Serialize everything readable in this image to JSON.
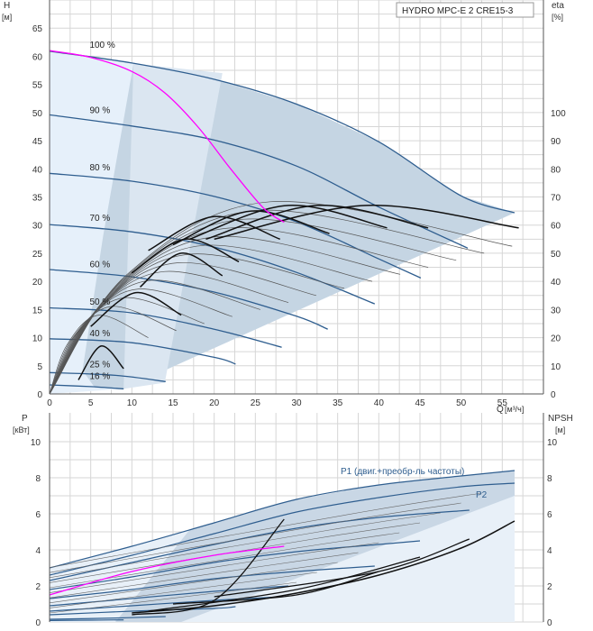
{
  "chart_data": [
    {
      "type": "line",
      "title": "HYDRO MPC-E 2 CRE15-3",
      "xlabel": "Q",
      "xunit": "[м³/ч]",
      "ylabel": "H",
      "yunit": "[м]",
      "y2label": "eta",
      "y2unit": "[%]",
      "xlim": [
        0,
        60
      ],
      "ylim": [
        0,
        70
      ],
      "y2lim": [
        0,
        140
      ],
      "xticks": [
        0,
        5,
        10,
        15,
        20,
        25,
        30,
        35,
        40,
        45,
        50,
        55
      ],
      "yticks": [
        0,
        5,
        10,
        15,
        20,
        25,
        30,
        35,
        40,
        45,
        50,
        55,
        60,
        65
      ],
      "y2ticks": [
        0,
        10,
        20,
        30,
        40,
        50,
        60,
        70,
        80,
        90,
        100
      ],
      "speed_labels": [
        {
          "text": "100 %",
          "q": 1.8,
          "h": 61.2
        },
        {
          "text": "90 %",
          "q": 1.8,
          "h": 49.6
        },
        {
          "text": "80 %",
          "q": 1.8,
          "h": 39.4
        },
        {
          "text": "70 %",
          "q": 1.8,
          "h": 30.4
        },
        {
          "text": "60 %",
          "q": 1.8,
          "h": 22.2
        },
        {
          "text": "50 %",
          "q": 1.8,
          "h": 15.5
        },
        {
          "text": "40 %",
          "q": 1.8,
          "h": 9.9
        },
        {
          "text": "25 %",
          "q": 1.8,
          "h": 4.4
        },
        {
          "text": "16 %",
          "q": 1.8,
          "h": 2.3
        }
      ],
      "series": [
        {
          "name": "100 %",
          "x": [
            0,
            10,
            20,
            30,
            40,
            50,
            56.5
          ],
          "y": [
            60.9,
            58.8,
            55.9,
            51.5,
            44.8,
            35.2,
            32.2
          ]
        },
        {
          "name": "90 %",
          "x": [
            0,
            10,
            20,
            30,
            40,
            50.8
          ],
          "y": [
            49.6,
            47.6,
            45.1,
            40.5,
            33.2,
            25.9
          ]
        },
        {
          "name": "80 %",
          "x": [
            0,
            10,
            20,
            30,
            40,
            45.1
          ],
          "y": [
            39.2,
            37.8,
            35.1,
            30.6,
            24.0,
            20.6
          ]
        },
        {
          "name": "70 %",
          "x": [
            0,
            10,
            20,
            30,
            39.5
          ],
          "y": [
            30.1,
            28.8,
            26.1,
            21.6,
            16.0
          ]
        },
        {
          "name": "60 %",
          "x": [
            0,
            10,
            20,
            30,
            33.8
          ],
          "y": [
            22.1,
            20.8,
            18.1,
            13.8,
            11.5
          ]
        },
        {
          "name": "50 %",
          "x": [
            0,
            10,
            20,
            28.2
          ],
          "y": [
            15.3,
            14.4,
            11.5,
            8.3
          ]
        },
        {
          "name": "40 %",
          "x": [
            0,
            10,
            20,
            22.6
          ],
          "y": [
            9.8,
            9.1,
            6.5,
            5.3
          ]
        },
        {
          "name": "25 %",
          "x": [
            0,
            8,
            14.1
          ],
          "y": [
            3.8,
            3.3,
            2.2
          ]
        },
        {
          "name": "16 %",
          "x": [
            0,
            5,
            9.0
          ],
          "y": [
            1.6,
            1.3,
            0.9
          ]
        }
      ]
    },
    {
      "type": "line",
      "xlabel": "Q",
      "xunit": "[м³/ч]",
      "ylabel": "P",
      "yunit": "[кВт]",
      "y2label": "NPSH",
      "y2unit": "[м]",
      "xlim": [
        0,
        60
      ],
      "ylim": [
        0,
        11.6
      ],
      "yticks": [
        0,
        2,
        4,
        6,
        8,
        10
      ],
      "y2ticks": [
        0,
        2,
        4,
        6,
        8,
        10
      ],
      "annotations": [
        {
          "text": "P1 (двиг.+преобр-ль частоты)",
          "q": 37.5,
          "p": 8.5
        },
        {
          "text": "P2",
          "q": 52.8,
          "p": 7.4
        }
      ],
      "series": [
        {
          "name": "P1 100 %",
          "x": [
            0,
            10,
            20,
            30,
            40,
            50,
            56.5
          ],
          "y": [
            3.0,
            4.2,
            5.5,
            6.8,
            7.6,
            8.1,
            8.4
          ]
        },
        {
          "name": "P2 100 %",
          "x": [
            0,
            10,
            20,
            30,
            40,
            50,
            56.5
          ],
          "y": [
            2.6,
            3.7,
            4.9,
            6.1,
            6.9,
            7.5,
            7.7
          ]
        },
        {
          "name": "P1 90 %",
          "x": [
            0,
            10,
            20,
            30,
            40,
            51
          ],
          "y": [
            2.3,
            3.3,
            4.3,
            5.2,
            5.8,
            6.2
          ]
        },
        {
          "name": "P1 80 %",
          "x": [
            0,
            10,
            20,
            30,
            40,
            45
          ],
          "y": [
            1.8,
            2.5,
            3.3,
            3.9,
            4.3,
            4.5
          ]
        },
        {
          "name": "P1 70 %",
          "x": [
            0,
            10,
            20,
            30,
            39.5
          ],
          "y": [
            1.3,
            1.8,
            2.4,
            2.8,
            3.1
          ]
        },
        {
          "name": "P1 60 %",
          "x": [
            0,
            10,
            20,
            29
          ],
          "y": [
            0.9,
            1.3,
            1.7,
            2.0
          ]
        },
        {
          "name": "P1 50 %",
          "x": [
            0,
            10,
            20,
            28.2
          ],
          "y": [
            0.6,
            0.9,
            1.2,
            1.4
          ]
        },
        {
          "name": "P1 40 %",
          "x": [
            0,
            10,
            20,
            22.6
          ],
          "y": [
            0.4,
            0.6,
            0.75,
            0.85
          ]
        },
        {
          "name": "P1 25 %",
          "x": [
            0,
            8,
            14.1
          ],
          "y": [
            0.15,
            0.22,
            0.3
          ]
        },
        {
          "name": "P1 16 %",
          "x": [
            0,
            5,
            9.0
          ],
          "y": [
            0.08,
            0.1,
            0.12
          ]
        },
        {
          "name": "NPSH",
          "x": [
            10,
            20,
            30,
            40,
            50,
            56.5
          ],
          "y": [
            0.5,
            0.9,
            1.6,
            2.6,
            4.1,
            5.6
          ]
        }
      ]
    }
  ]
}
